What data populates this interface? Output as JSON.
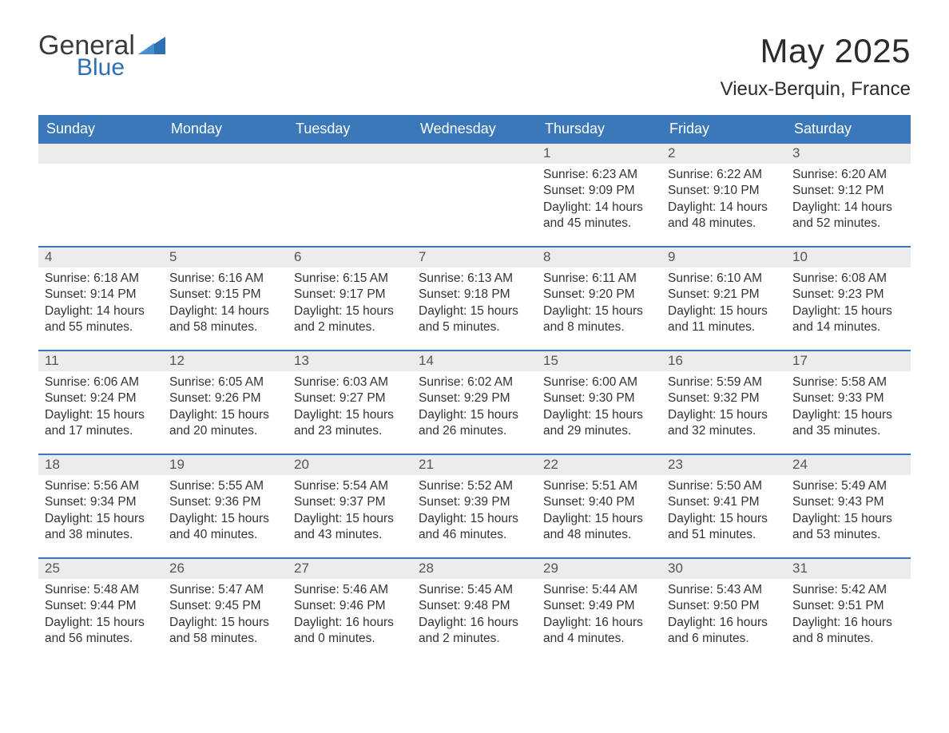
{
  "brand": {
    "word1": "General",
    "word2": "Blue",
    "text_color": "#3c3c3c",
    "accent_color": "#2f6fb4"
  },
  "title": {
    "month_year": "May 2025",
    "location": "Vieux-Berquin, France",
    "title_fontsize": 42,
    "location_fontsize": 24,
    "text_color": "#2b2b2b"
  },
  "calendar": {
    "type": "table",
    "header_bg": "#3b78b9",
    "header_text_color": "#ffffff",
    "row_divider_color": "#3b78b9",
    "daynum_bg": "#ececec",
    "daynum_color": "#555555",
    "body_text_color": "#333333",
    "body_fontsize": 15.5,
    "weekdays": [
      "Sunday",
      "Monday",
      "Tuesday",
      "Wednesday",
      "Thursday",
      "Friday",
      "Saturday"
    ],
    "sunrise_label": "Sunrise: ",
    "sunset_label": "Sunset: ",
    "daylight_label": "Daylight: ",
    "weeks": [
      [
        null,
        null,
        null,
        null,
        {
          "n": "1",
          "sunrise": "6:23 AM",
          "sunset": "9:09 PM",
          "daylight": "14 hours and 45 minutes."
        },
        {
          "n": "2",
          "sunrise": "6:22 AM",
          "sunset": "9:10 PM",
          "daylight": "14 hours and 48 minutes."
        },
        {
          "n": "3",
          "sunrise": "6:20 AM",
          "sunset": "9:12 PM",
          "daylight": "14 hours and 52 minutes."
        }
      ],
      [
        {
          "n": "4",
          "sunrise": "6:18 AM",
          "sunset": "9:14 PM",
          "daylight": "14 hours and 55 minutes."
        },
        {
          "n": "5",
          "sunrise": "6:16 AM",
          "sunset": "9:15 PM",
          "daylight": "14 hours and 58 minutes."
        },
        {
          "n": "6",
          "sunrise": "6:15 AM",
          "sunset": "9:17 PM",
          "daylight": "15 hours and 2 minutes."
        },
        {
          "n": "7",
          "sunrise": "6:13 AM",
          "sunset": "9:18 PM",
          "daylight": "15 hours and 5 minutes."
        },
        {
          "n": "8",
          "sunrise": "6:11 AM",
          "sunset": "9:20 PM",
          "daylight": "15 hours and 8 minutes."
        },
        {
          "n": "9",
          "sunrise": "6:10 AM",
          "sunset": "9:21 PM",
          "daylight": "15 hours and 11 minutes."
        },
        {
          "n": "10",
          "sunrise": "6:08 AM",
          "sunset": "9:23 PM",
          "daylight": "15 hours and 14 minutes."
        }
      ],
      [
        {
          "n": "11",
          "sunrise": "6:06 AM",
          "sunset": "9:24 PM",
          "daylight": "15 hours and 17 minutes."
        },
        {
          "n": "12",
          "sunrise": "6:05 AM",
          "sunset": "9:26 PM",
          "daylight": "15 hours and 20 minutes."
        },
        {
          "n": "13",
          "sunrise": "6:03 AM",
          "sunset": "9:27 PM",
          "daylight": "15 hours and 23 minutes."
        },
        {
          "n": "14",
          "sunrise": "6:02 AM",
          "sunset": "9:29 PM",
          "daylight": "15 hours and 26 minutes."
        },
        {
          "n": "15",
          "sunrise": "6:00 AM",
          "sunset": "9:30 PM",
          "daylight": "15 hours and 29 minutes."
        },
        {
          "n": "16",
          "sunrise": "5:59 AM",
          "sunset": "9:32 PM",
          "daylight": "15 hours and 32 minutes."
        },
        {
          "n": "17",
          "sunrise": "5:58 AM",
          "sunset": "9:33 PM",
          "daylight": "15 hours and 35 minutes."
        }
      ],
      [
        {
          "n": "18",
          "sunrise": "5:56 AM",
          "sunset": "9:34 PM",
          "daylight": "15 hours and 38 minutes."
        },
        {
          "n": "19",
          "sunrise": "5:55 AM",
          "sunset": "9:36 PM",
          "daylight": "15 hours and 40 minutes."
        },
        {
          "n": "20",
          "sunrise": "5:54 AM",
          "sunset": "9:37 PM",
          "daylight": "15 hours and 43 minutes."
        },
        {
          "n": "21",
          "sunrise": "5:52 AM",
          "sunset": "9:39 PM",
          "daylight": "15 hours and 46 minutes."
        },
        {
          "n": "22",
          "sunrise": "5:51 AM",
          "sunset": "9:40 PM",
          "daylight": "15 hours and 48 minutes."
        },
        {
          "n": "23",
          "sunrise": "5:50 AM",
          "sunset": "9:41 PM",
          "daylight": "15 hours and 51 minutes."
        },
        {
          "n": "24",
          "sunrise": "5:49 AM",
          "sunset": "9:43 PM",
          "daylight": "15 hours and 53 minutes."
        }
      ],
      [
        {
          "n": "25",
          "sunrise": "5:48 AM",
          "sunset": "9:44 PM",
          "daylight": "15 hours and 56 minutes."
        },
        {
          "n": "26",
          "sunrise": "5:47 AM",
          "sunset": "9:45 PM",
          "daylight": "15 hours and 58 minutes."
        },
        {
          "n": "27",
          "sunrise": "5:46 AM",
          "sunset": "9:46 PM",
          "daylight": "16 hours and 0 minutes."
        },
        {
          "n": "28",
          "sunrise": "5:45 AM",
          "sunset": "9:48 PM",
          "daylight": "16 hours and 2 minutes."
        },
        {
          "n": "29",
          "sunrise": "5:44 AM",
          "sunset": "9:49 PM",
          "daylight": "16 hours and 4 minutes."
        },
        {
          "n": "30",
          "sunrise": "5:43 AM",
          "sunset": "9:50 PM",
          "daylight": "16 hours and 6 minutes."
        },
        {
          "n": "31",
          "sunrise": "5:42 AM",
          "sunset": "9:51 PM",
          "daylight": "16 hours and 8 minutes."
        }
      ]
    ]
  }
}
